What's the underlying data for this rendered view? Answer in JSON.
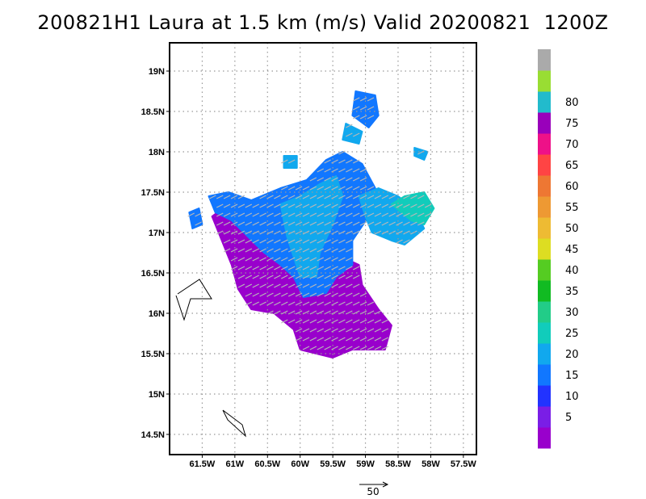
{
  "chart_data": {
    "type": "heatmap",
    "title": "200821H1 Laura at 1.5 km (m/s) Valid 20200821  1200Z",
    "x_ticks": [
      {
        "lon": -61.5,
        "label": "61.5W"
      },
      {
        "lon": -61.0,
        "label": "61W"
      },
      {
        "lon": -60.5,
        "label": "60.5W"
      },
      {
        "lon": -60.0,
        "label": "60W"
      },
      {
        "lon": -59.5,
        "label": "59.5W"
      },
      {
        "lon": -59.0,
        "label": "59W"
      },
      {
        "lon": -58.5,
        "label": "58.5W"
      },
      {
        "lon": -58.0,
        "label": "58W"
      },
      {
        "lon": -57.5,
        "label": "57.5W"
      }
    ],
    "y_ticks": [
      {
        "lat": 19.0,
        "label": "19N"
      },
      {
        "lat": 18.5,
        "label": "18.5N"
      },
      {
        "lat": 18.0,
        "label": "18N"
      },
      {
        "lat": 17.5,
        "label": "17.5N"
      },
      {
        "lat": 17.0,
        "label": "17N"
      },
      {
        "lat": 16.5,
        "label": "16.5N"
      },
      {
        "lat": 16.0,
        "label": "16N"
      },
      {
        "lat": 15.5,
        "label": "15.5N"
      },
      {
        "lat": 15.0,
        "label": "15N"
      },
      {
        "lat": 14.5,
        "label": "14.5N"
      }
    ],
    "xlim": [
      -62.0,
      -57.3
    ],
    "ylim": [
      14.25,
      19.35
    ],
    "grid": true,
    "colorbar": {
      "labels": [
        "5",
        "10",
        "15",
        "20",
        "25",
        "30",
        "35",
        "40",
        "45",
        "50",
        "55",
        "60",
        "65",
        "70",
        "75",
        "80"
      ],
      "colors": [
        "#9900cc",
        "#7a1ee6",
        "#2233ff",
        "#1177ff",
        "#11a8ee",
        "#11ccbb",
        "#22cc88",
        "#11bb22",
        "#55cc22",
        "#dddd22",
        "#eebb33",
        "#ee9933",
        "#ee7733",
        "#ff4444",
        "#ee1188",
        "#9900bb",
        "#22bbcc",
        "#99dd33",
        "#aaaaaa"
      ]
    },
    "regions": [
      {
        "level": "5",
        "color": "#9900cc",
        "points": [
          [
            -61.1,
            17.35
          ],
          [
            -60.75,
            17.25
          ],
          [
            -60.4,
            17.1
          ],
          [
            -60.0,
            16.95
          ],
          [
            -59.5,
            16.75
          ],
          [
            -59.1,
            16.6
          ],
          [
            -59.05,
            16.35
          ],
          [
            -58.8,
            16.05
          ],
          [
            -58.6,
            15.85
          ],
          [
            -58.7,
            15.55
          ],
          [
            -59.2,
            15.55
          ],
          [
            -59.5,
            15.45
          ],
          [
            -60.0,
            15.55
          ],
          [
            -60.1,
            15.8
          ],
          [
            -60.4,
            16.0
          ],
          [
            -60.75,
            16.05
          ],
          [
            -60.95,
            16.3
          ],
          [
            -61.05,
            16.6
          ],
          [
            -61.2,
            16.9
          ],
          [
            -61.35,
            17.2
          ]
        ]
      },
      {
        "level": "15",
        "color": "#1177ff",
        "points": [
          [
            -61.4,
            17.45
          ],
          [
            -61.1,
            17.5
          ],
          [
            -60.75,
            17.4
          ],
          [
            -60.3,
            17.55
          ],
          [
            -59.9,
            17.65
          ],
          [
            -59.6,
            17.9
          ],
          [
            -59.35,
            18.0
          ],
          [
            -59.05,
            17.85
          ],
          [
            -58.85,
            17.55
          ],
          [
            -58.95,
            17.2
          ],
          [
            -59.2,
            16.9
          ],
          [
            -59.2,
            16.6
          ],
          [
            -59.45,
            16.45
          ],
          [
            -59.6,
            16.25
          ],
          [
            -59.95,
            16.2
          ],
          [
            -60.1,
            16.45
          ],
          [
            -60.3,
            16.6
          ],
          [
            -60.55,
            16.75
          ],
          [
            -60.8,
            16.95
          ],
          [
            -61.05,
            17.15
          ],
          [
            -61.3,
            17.25
          ]
        ]
      },
      {
        "level": "20",
        "color": "#11a8ee",
        "points": [
          [
            -60.3,
            17.35
          ],
          [
            -60.0,
            17.45
          ],
          [
            -59.7,
            17.6
          ],
          [
            -59.45,
            17.7
          ],
          [
            -59.35,
            17.45
          ],
          [
            -59.5,
            17.1
          ],
          [
            -59.7,
            16.75
          ],
          [
            -59.75,
            16.45
          ],
          [
            -60.0,
            16.45
          ],
          [
            -60.1,
            16.7
          ],
          [
            -60.2,
            16.95
          ]
        ]
      },
      {
        "level": "20",
        "color": "#11a8ee",
        "points": [
          [
            -59.1,
            17.45
          ],
          [
            -58.8,
            17.55
          ],
          [
            -58.5,
            17.45
          ],
          [
            -58.25,
            17.3
          ],
          [
            -58.1,
            17.05
          ],
          [
            -58.4,
            16.85
          ],
          [
            -58.6,
            16.9
          ],
          [
            -58.9,
            17.0
          ],
          [
            -59.0,
            17.2
          ]
        ]
      },
      {
        "level": "25",
        "color": "#11ccbb",
        "points": [
          [
            -58.6,
            17.35
          ],
          [
            -58.4,
            17.45
          ],
          [
            -58.1,
            17.5
          ],
          [
            -57.95,
            17.3
          ],
          [
            -58.1,
            17.1
          ],
          [
            -58.3,
            17.15
          ]
        ]
      },
      {
        "level": "15",
        "color": "#1177ff",
        "points": [
          [
            -59.15,
            18.75
          ],
          [
            -58.85,
            18.7
          ],
          [
            -58.8,
            18.45
          ],
          [
            -58.95,
            18.3
          ],
          [
            -59.2,
            18.45
          ]
        ]
      },
      {
        "level": "20",
        "color": "#11a8ee",
        "points": [
          [
            -59.3,
            18.35
          ],
          [
            -59.05,
            18.25
          ],
          [
            -59.1,
            18.1
          ],
          [
            -59.35,
            18.15
          ]
        ]
      },
      {
        "level": "20",
        "color": "#11a8ee",
        "points": [
          [
            -58.25,
            18.05
          ],
          [
            -58.05,
            18.0
          ],
          [
            -58.1,
            17.9
          ],
          [
            -58.25,
            17.95
          ]
        ]
      },
      {
        "level": "15",
        "color": "#1177ff",
        "points": [
          [
            -61.7,
            17.25
          ],
          [
            -61.55,
            17.3
          ],
          [
            -61.5,
            17.1
          ],
          [
            -61.65,
            17.05
          ]
        ]
      },
      {
        "level": "20",
        "color": "#11a8ee",
        "points": [
          [
            -60.25,
            17.95
          ],
          [
            -60.05,
            17.95
          ],
          [
            -60.05,
            17.8
          ],
          [
            -60.25,
            17.8
          ]
        ]
      }
    ],
    "reference_vector": {
      "label": "50"
    }
  }
}
